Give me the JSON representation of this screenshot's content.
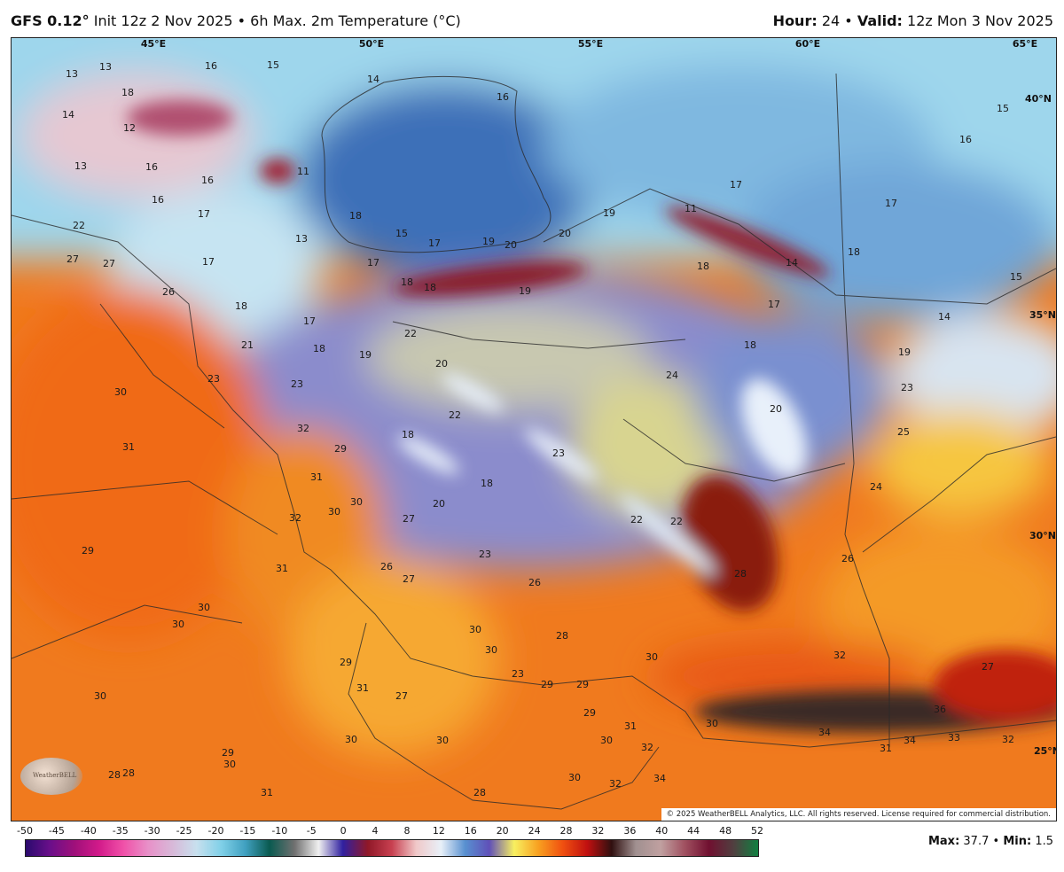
{
  "header": {
    "model": "GFS 0.12°",
    "init": "Init 12z 2 Nov 2025",
    "separator": "•",
    "product": "6h Max. 2m Temperature (°C)",
    "hour_label": "Hour:",
    "hour_value": "24",
    "valid_label": "Valid:",
    "valid_value": "12z Mon 3 Nov 2025"
  },
  "map": {
    "longitude_labels": [
      "45°E",
      "50°E",
      "55°E",
      "60°E",
      "65°E"
    ],
    "latitude_labels": [
      "40°N",
      "35°N",
      "30°N",
      "25°N"
    ],
    "temperature_labels": [
      "13",
      "13",
      "16",
      "15",
      "14",
      "18",
      "14",
      "12",
      "16",
      "15",
      "16",
      "13",
      "16",
      "16",
      "11",
      "16",
      "17",
      "18",
      "17",
      "11",
      "17",
      "19",
      "22",
      "15",
      "17",
      "19",
      "20",
      "20",
      "13",
      "27",
      "27",
      "17",
      "17",
      "18",
      "18",
      "19",
      "18",
      "14",
      "18",
      "15",
      "26",
      "18",
      "17",
      "17",
      "14",
      "22",
      "21",
      "18",
      "19",
      "18",
      "19",
      "20",
      "23",
      "23",
      "24",
      "23",
      "30",
      "22",
      "20",
      "32",
      "29",
      "18",
      "23",
      "25",
      "31",
      "31",
      "18",
      "24",
      "30",
      "20",
      "30",
      "32",
      "27",
      "22",
      "22",
      "29",
      "31",
      "26",
      "27",
      "23",
      "28",
      "26",
      "26",
      "30",
      "30",
      "30",
      "28",
      "30",
      "32",
      "27",
      "29",
      "23",
      "29",
      "29",
      "30",
      "31",
      "27",
      "30",
      "36",
      "29",
      "30",
      "30",
      "30",
      "31",
      "34",
      "34",
      "33",
      "32",
      "31",
      "30",
      "32",
      "29",
      "30",
      "28",
      "28",
      "30",
      "34",
      "32",
      "31",
      "28"
    ],
    "copyright": "© 2025 WeatherBELL Analytics, LLC. All rights reserved. License required for commercial distribution.",
    "logo_text": "WeatherBELL"
  },
  "colorbar": {
    "ticks": [
      "-50",
      "-45",
      "-40",
      "-35",
      "-30",
      "-25",
      "-20",
      "-15",
      "-10",
      "-5",
      "0",
      "4",
      "8",
      "12",
      "16",
      "20",
      "24",
      "28",
      "32",
      "36",
      "40",
      "44",
      "48",
      "52"
    ],
    "colors": [
      "#2a0a6e",
      "#6a0f8a",
      "#a0107a",
      "#d21a8a",
      "#f050a8",
      "#e890c8",
      "#d8b8d8",
      "#c8e0ee",
      "#80d0e8",
      "#40a0c0",
      "#0a5a50",
      "#707070",
      "#f0f0f0",
      "#3020a0",
      "#901828",
      "#c84050",
      "#f0c8c8",
      "#e8f0f8",
      "#5890d0",
      "#6050b8",
      "#f8f060",
      "#f8a020",
      "#f05010",
      "#c01010",
      "#301010",
      "#a09090",
      "#c0a0a0",
      "#a05060",
      "#701030",
      "#504040",
      "#108040"
    ]
  },
  "stats": {
    "max_label": "Max:",
    "max_value": "37.7",
    "min_label": "Min:",
    "min_value": "1.5",
    "separator": "•"
  }
}
